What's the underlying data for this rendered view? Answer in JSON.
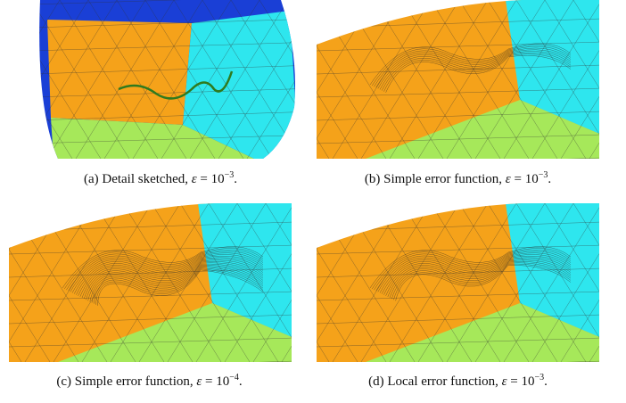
{
  "figure": {
    "panels": [
      {
        "label": "(a)",
        "text": "Detail sketched,",
        "symbol": "ε",
        "equals": "=",
        "base": "10",
        "exponent": "−3",
        "end": "."
      },
      {
        "label": "(b)",
        "text": "Simple error function,",
        "symbol": "ε",
        "equals": "=",
        "base": "10",
        "exponent": "−3",
        "end": "."
      },
      {
        "label": "(c)",
        "text": "Simple error function,",
        "symbol": "ε",
        "equals": "=",
        "base": "10",
        "exponent": "−4",
        "end": "."
      },
      {
        "label": "(d)",
        "text": "Local error function,",
        "symbol": "ε",
        "equals": "=",
        "base": "10",
        "exponent": "−3",
        "end": "."
      }
    ]
  }
}
